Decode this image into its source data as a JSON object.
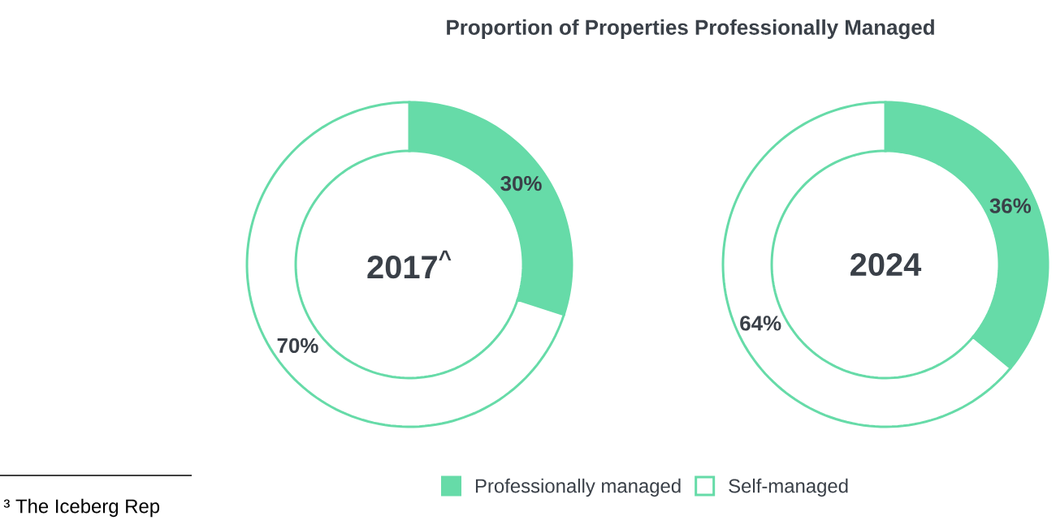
{
  "chart_data": [
    {
      "type": "donut",
      "title": "Proportion of Properties Professionally Managed",
      "categories": [
        null,
        null
      ],
      "values": [
        30,
        70
      ],
      "colors": [
        "#66dba8",
        "#ffffff"
      ],
      "value_labels": [
        "30%",
        "70%"
      ],
      "annotations": [
        "2017$^{^}$",
        "³ The Iceberg Rep"
      ],
      "legend": false
    },
    {
      "type": "donut",
      "categories": [
        "Professionally managed",
        "Self-managed"
      ],
      "values": [
        36,
        64
      ],
      "colors": [
        "#66dba8",
        "#ffffff"
      ],
      "value_labels": [
        "36%",
        "64%"
      ],
      "annotations": [
        "2024"
      ],
      "legend": "bottom"
    }
  ]
}
